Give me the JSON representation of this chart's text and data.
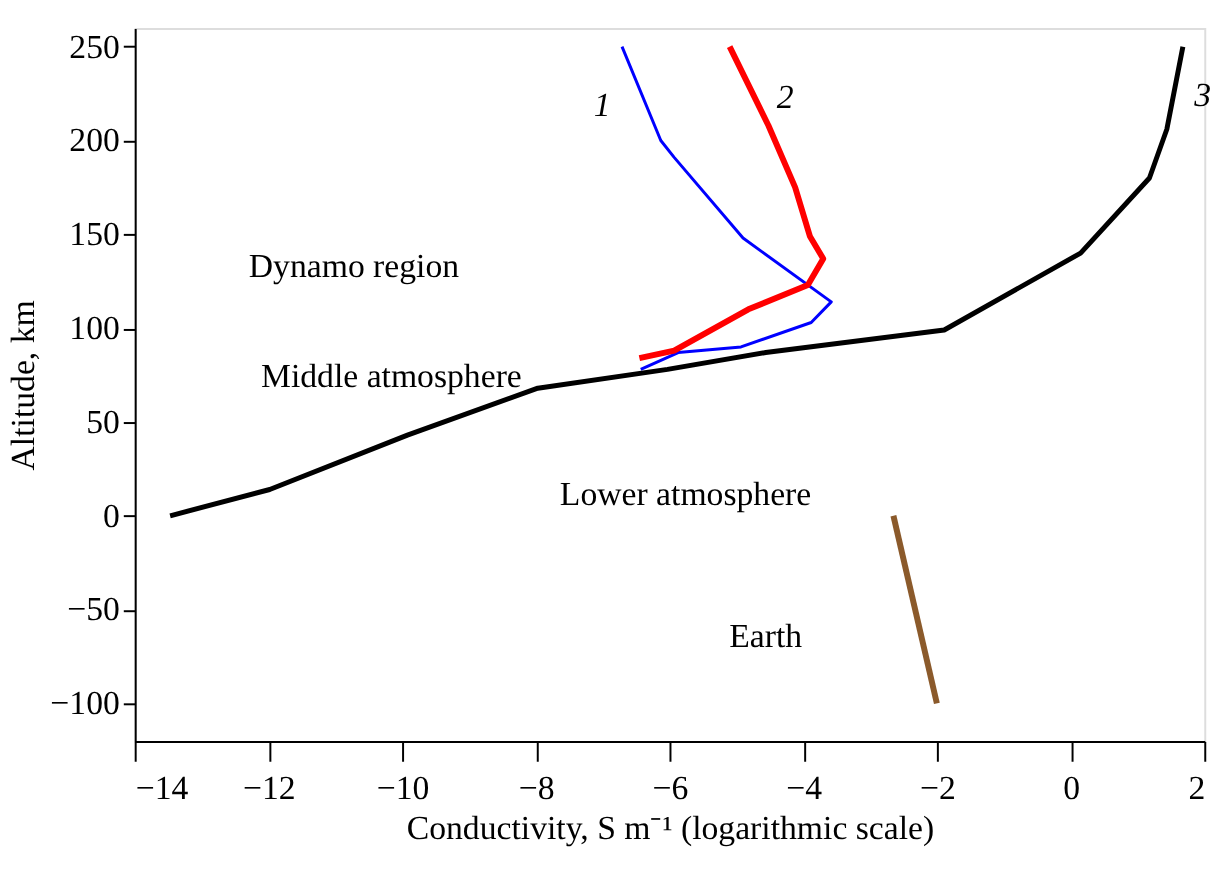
{
  "chart_data": {
    "type": "line",
    "xlabel": "Conductivity, S m⁻¹ (logarithmic scale)",
    "ylabel": "Altitude, km",
    "xlim": [
      -14,
      2
    ],
    "xticks": [
      -14,
      -12,
      -10,
      -8,
      -6,
      -4,
      -2,
      0,
      2
    ],
    "ylim": [
      -120,
      260
    ],
    "yticks": [
      -100,
      -50,
      0,
      50,
      100,
      150,
      200,
      250
    ],
    "grid": false,
    "marker": "none",
    "line_style": "solid",
    "series": [
      {
        "name": "1",
        "color": "#0000ff",
        "x": [
          -6.43,
          -5.87,
          -4.93,
          -3.88,
          -3.58,
          -4.9,
          -5.93,
          -6.13,
          -6.71
        ],
        "values": [
          78,
          87,
          90,
          103,
          114,
          148,
          191,
          200,
          250
        ]
      },
      {
        "name": "2",
        "color": "#ff0000",
        "x": [
          -6.45,
          -5.93,
          -4.82,
          -3.93,
          -3.7,
          -3.9,
          -4.12,
          -4.52,
          -5.1
        ],
        "values": [
          84,
          88,
          110,
          123,
          137,
          149,
          175,
          208,
          250
        ]
      },
      {
        "name": "3",
        "color": "#000000",
        "x": [
          -13.47,
          -11.98,
          -9.92,
          -7.97,
          -6.03,
          -4.56,
          -1.89,
          0.15,
          1.18,
          1.44,
          1.68
        ],
        "values": [
          0,
          14,
          43,
          68,
          78,
          87,
          99,
          140,
          180,
          206,
          250
        ]
      },
      {
        "color": "#8b5a2b",
        "x": [
          -2.65,
          -2.0
        ],
        "values": [
          0,
          -100
        ]
      }
    ],
    "annotations": [
      "Dynamo region",
      "Middle atmosphere",
      "Lower atmosphere",
      "Earth"
    ]
  }
}
